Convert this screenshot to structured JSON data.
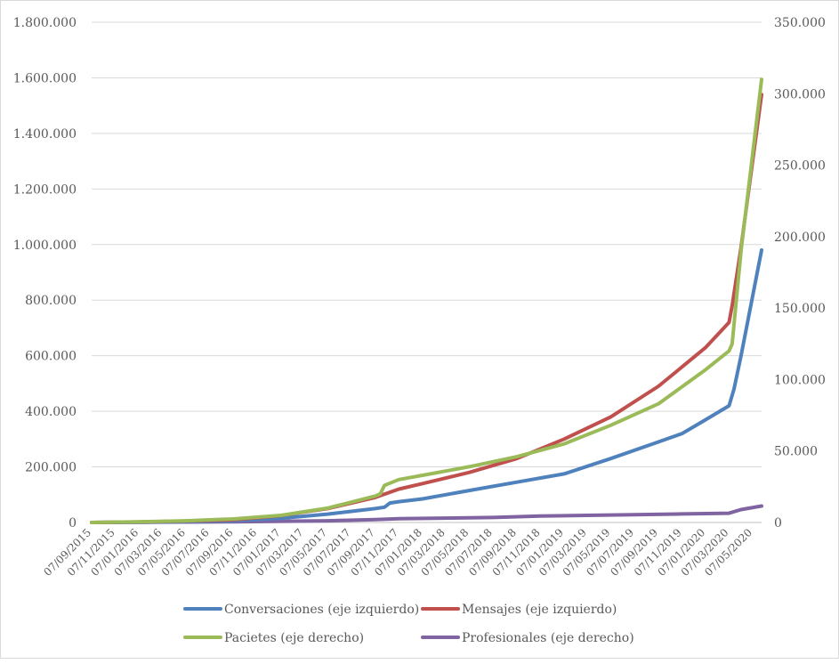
{
  "chart_data": {
    "type": "line",
    "y_left": {
      "min": 0,
      "max": 1800000,
      "step": 200000,
      "tick_labels": [
        "0",
        "200.000",
        "400.000",
        "600.000",
        "800.000",
        "1.000.000",
        "1.200.000",
        "1.400.000",
        "1.600.000",
        "1.800.000"
      ]
    },
    "y_right": {
      "min": 0,
      "max": 350000,
      "step": 50000,
      "tick_labels": [
        "0",
        "50.000",
        "100.000",
        "150.000",
        "200.000",
        "250.000",
        "300.000",
        "350.000"
      ]
    },
    "x_tick_labels": [
      "07/09/2015",
      "07/11/2015",
      "07/01/2016",
      "07/03/2016",
      "07/05/2016",
      "07/07/2016",
      "07/09/2016",
      "07/11/2016",
      "07/01/2017",
      "07/03/2017",
      "07/05/2017",
      "07/07/2017",
      "07/09/2017",
      "07/11/2017",
      "07/01/2018",
      "07/03/2018",
      "07/05/2018",
      "07/07/2018",
      "07/09/2018",
      "07/11/2018",
      "07/01/2019",
      "07/03/2019",
      "07/05/2019",
      "07/07/2019",
      "07/09/2019",
      "07/11/2019",
      "07/01/2020",
      "07/03/2020",
      "07/05/2020"
    ],
    "x_range": [
      "07/09/2015",
      "30/05/2020"
    ],
    "grid": "horizontal",
    "legend_position": "bottom",
    "series": [
      {
        "name": "Conversaciones (eje izquierdo)",
        "axis": "left",
        "color": "#4f81bd",
        "points": [
          [
            "07/09/2015",
            0
          ],
          [
            "07/01/2016",
            1000
          ],
          [
            "07/05/2016",
            3000
          ],
          [
            "07/09/2016",
            6000
          ],
          [
            "07/01/2017",
            15000
          ],
          [
            "07/05/2017",
            30000
          ],
          [
            "07/09/2017",
            50000
          ],
          [
            "01/10/2017",
            55000
          ],
          [
            "15/10/2017",
            70000
          ],
          [
            "07/11/2017",
            75000
          ],
          [
            "07/01/2018",
            85000
          ],
          [
            "07/05/2018",
            115000
          ],
          [
            "07/09/2018",
            145000
          ],
          [
            "07/01/2019",
            175000
          ],
          [
            "07/05/2019",
            230000
          ],
          [
            "07/09/2019",
            290000
          ],
          [
            "07/11/2019",
            320000
          ],
          [
            "07/01/2020",
            370000
          ],
          [
            "07/03/2020",
            420000
          ],
          [
            "20/03/2020",
            480000
          ],
          [
            "07/04/2020",
            600000
          ],
          [
            "30/05/2020",
            980000
          ]
        ]
      },
      {
        "name": "Mensajes (eje izquierdo)",
        "axis": "left",
        "color": "#c0504d",
        "points": [
          [
            "07/09/2015",
            0
          ],
          [
            "07/01/2016",
            2000
          ],
          [
            "07/05/2016",
            5000
          ],
          [
            "07/09/2016",
            10000
          ],
          [
            "07/01/2017",
            25000
          ],
          [
            "07/05/2017",
            50000
          ],
          [
            "07/09/2017",
            90000
          ],
          [
            "07/11/2017",
            120000
          ],
          [
            "07/01/2018",
            140000
          ],
          [
            "07/05/2018",
            180000
          ],
          [
            "07/09/2018",
            230000
          ],
          [
            "07/01/2019",
            300000
          ],
          [
            "07/05/2019",
            380000
          ],
          [
            "07/09/2019",
            490000
          ],
          [
            "07/11/2019",
            560000
          ],
          [
            "07/01/2020",
            630000
          ],
          [
            "07/03/2020",
            720000
          ],
          [
            "15/03/2020",
            780000
          ],
          [
            "07/04/2020",
            990000
          ],
          [
            "30/05/2020",
            1540000
          ]
        ]
      },
      {
        "name": "Pacietes (eje derecho)",
        "axis": "right",
        "color": "#9bbb59",
        "points": [
          [
            "07/09/2015",
            0
          ],
          [
            "07/01/2016",
            500
          ],
          [
            "07/05/2016",
            1200
          ],
          [
            "07/09/2016",
            2500
          ],
          [
            "07/01/2017",
            5000
          ],
          [
            "07/05/2017",
            10000
          ],
          [
            "07/09/2017",
            18500
          ],
          [
            "20/09/2017",
            20000
          ],
          [
            "01/10/2017",
            26000
          ],
          [
            "07/11/2017",
            30000
          ],
          [
            "07/01/2018",
            33000
          ],
          [
            "07/05/2018",
            39000
          ],
          [
            "07/09/2018",
            46000
          ],
          [
            "07/01/2019",
            55000
          ],
          [
            "07/05/2019",
            68000
          ],
          [
            "07/09/2019",
            83000
          ],
          [
            "07/11/2019",
            95000
          ],
          [
            "07/01/2020",
            107000
          ],
          [
            "07/03/2020",
            120000
          ],
          [
            "15/03/2020",
            125000
          ],
          [
            "07/04/2020",
            190000
          ],
          [
            "30/05/2020",
            310000
          ]
        ]
      },
      {
        "name": "Profesionales (eje derecho)",
        "axis": "right",
        "color": "#8064a2",
        "points": [
          [
            "07/09/2015",
            0
          ],
          [
            "07/01/2016",
            200
          ],
          [
            "07/09/2016",
            500
          ],
          [
            "07/05/2017",
            1200
          ],
          [
            "07/09/2017",
            2000
          ],
          [
            "07/11/2017",
            2600
          ],
          [
            "07/07/2018",
            3500
          ],
          [
            "07/11/2018",
            4500
          ],
          [
            "07/03/2019",
            5000
          ],
          [
            "07/07/2019",
            5500
          ],
          [
            "07/11/2019",
            6000
          ],
          [
            "07/03/2020",
            6500
          ],
          [
            "07/04/2020",
            9000
          ],
          [
            "30/05/2020",
            11500
          ]
        ]
      }
    ]
  }
}
